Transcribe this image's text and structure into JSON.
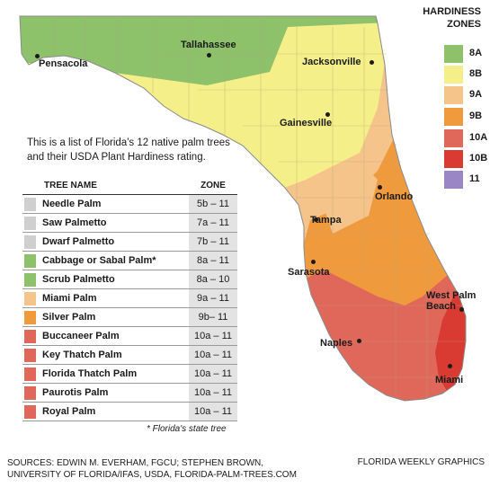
{
  "legend": {
    "title_line1": "HARDINESS",
    "title_line2": "ZONES",
    "items": [
      {
        "label": "8A",
        "color": "#8dc26b"
      },
      {
        "label": "8B",
        "color": "#f5ef8a"
      },
      {
        "label": "9A",
        "color": "#f5c48a"
      },
      {
        "label": "9B",
        "color": "#f09a3e"
      },
      {
        "label": "10A",
        "color": "#e0685a"
      },
      {
        "label": "10B",
        "color": "#d93b33"
      },
      {
        "label": "11",
        "color": "#9a86c4"
      }
    ]
  },
  "cities": {
    "pensacola": "Pensacola",
    "tallahassee": "Tallahassee",
    "jacksonville": "Jacksonville",
    "gainesville": "Gainesville",
    "orlando": "Orlando",
    "tampa": "Tampa",
    "sarasota": "Sarasota",
    "west_palm_beach": "West Palm Beach",
    "naples": "Naples",
    "miami": "Miami"
  },
  "intro_text": "This is a list of Florida's 12 native palm trees and their USDA Plant Hardiness rating.",
  "table": {
    "col_name": "TREE NAME",
    "col_zone": "ZONE",
    "rows": [
      {
        "name": "Needle Palm",
        "zone": "5b – 11",
        "color": "#cfcfcf"
      },
      {
        "name": "Saw Palmetto",
        "zone": "7a – 11",
        "color": "#cfcfcf"
      },
      {
        "name": "Dwarf Palmetto",
        "zone": "7b – 11",
        "color": "#cfcfcf"
      },
      {
        "name": "Cabbage or Sabal Palm*",
        "zone": "8a – 11",
        "color": "#8dc26b"
      },
      {
        "name": "Scrub Palmetto",
        "zone": "8a – 10",
        "color": "#8dc26b"
      },
      {
        "name": "Miami Palm",
        "zone": "9a – 11",
        "color": "#f5c48a"
      },
      {
        "name": "Silver Palm",
        "zone": "9b– 11",
        "color": "#f09a3e"
      },
      {
        "name": "Buccaneer Palm",
        "zone": "10a – 11",
        "color": "#e0685a"
      },
      {
        "name": "Key Thatch Palm",
        "zone": "10a – 11",
        "color": "#e0685a"
      },
      {
        "name": "Florida Thatch Palm",
        "zone": "10a – 11",
        "color": "#e0685a"
      },
      {
        "name": "Paurotis Palm",
        "zone": "10a – 11",
        "color": "#e0685a"
      },
      {
        "name": "Royal Palm",
        "zone": "10a – 11",
        "color": "#e0685a"
      }
    ]
  },
  "state_note": "* Florida's state tree",
  "sources_line1": "SOURCES: EDWIN M. EVERHAM, FGCU; STEPHEN BROWN,",
  "sources_line2": "UNIVERSITY OF FLORIDA/IFAS, USDA, FLORIDA-PALM-TREES.COM",
  "credit": "FLORIDA WEEKLY GRAPHICS"
}
